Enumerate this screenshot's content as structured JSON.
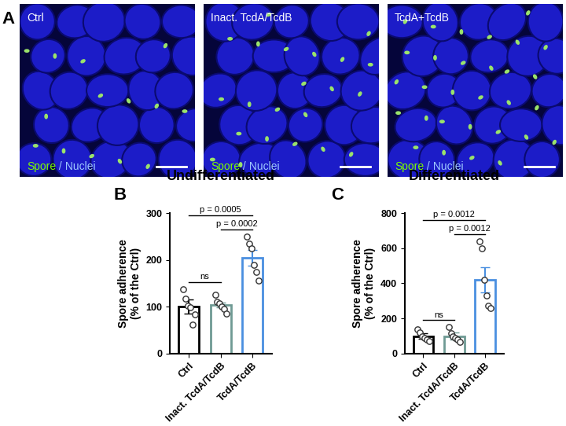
{
  "images": {
    "panel_label": "A",
    "panels": [
      "Ctrl",
      "Inact. TcdA/TcdB",
      "TcdA+TcdB"
    ],
    "stain": [
      "Spore",
      "/",
      "Nuclei"
    ]
  },
  "chart_data": [
    {
      "type": "bar",
      "panel_label": "B",
      "title": "Undifferentiated",
      "y_label": "Spore adherence\n(% of the Ctrl)",
      "categories": [
        "Ctrl",
        "Inact. TcdA/TcdB",
        "TcdA/TcdB"
      ],
      "values": [
        100,
        103,
        205
      ],
      "errors": [
        15,
        5,
        17
      ],
      "points": [
        [
          137,
          118,
          102,
          98,
          62,
          83
        ],
        [
          125,
          110,
          107,
          100,
          95,
          85
        ],
        [
          250,
          235,
          225,
          190,
          175,
          155
        ]
      ],
      "colors": [
        "#000000",
        "#6f9a94",
        "#4a8fe0"
      ],
      "ylim": [
        0,
        300
      ],
      "yticks": [
        0,
        100,
        200,
        300
      ],
      "annotations": [
        {
          "from": "Ctrl",
          "to": "Inact. TcdA/TcdB",
          "label": "ns"
        },
        {
          "from": "Inact. TcdA/TcdB",
          "to": "TcdA/TcdB",
          "label": "p = 0.0002"
        },
        {
          "from": "Ctrl",
          "to": "TcdA/TcdB",
          "label": "p = 0.0005"
        }
      ]
    },
    {
      "type": "bar",
      "panel_label": "C",
      "title": "Differentiated",
      "y_label": "Spore adherence\n(% of the Ctrl)",
      "categories": [
        "Ctrl",
        "Inact. TcdA/TcdB",
        "TcdA/TcdB"
      ],
      "values": [
        100,
        100,
        420
      ],
      "errors": [
        15,
        20,
        70
      ],
      "points": [
        [
          140,
          120,
          100,
          90,
          80,
          70
        ],
        [
          150,
          115,
          100,
          90,
          80,
          65
        ],
        [
          640,
          600,
          420,
          330,
          270,
          260
        ]
      ],
      "colors": [
        "#000000",
        "#6f9a94",
        "#4a8fe0"
      ],
      "ylim": [
        0,
        800
      ],
      "yticks": [
        0,
        200,
        400,
        600,
        800
      ],
      "annotations": [
        {
          "from": "Ctrl",
          "to": "Inact. TcdA/TcdB",
          "label": "ns"
        },
        {
          "from": "Inact. TcdA/TcdB",
          "to": "TcdA/TcdB",
          "label": "p = 0.0012"
        },
        {
          "from": "Ctrl",
          "to": "TcdA/TcdB",
          "label": "p = 0.0012"
        }
      ]
    }
  ]
}
